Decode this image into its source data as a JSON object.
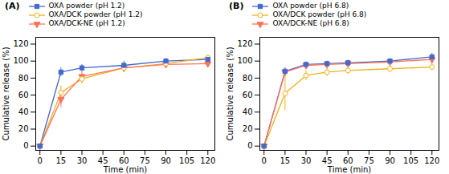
{
  "chart_data": [
    {
      "type": "line",
      "title": "(A)",
      "xlabel": "Time (min)",
      "ylabel": "Cumulative release (%)",
      "x": [
        0,
        15,
        30,
        60,
        90,
        120
      ],
      "series": [
        {
          "name": "OXA powder (pH 1.2)",
          "values": [
            0,
            87,
            92,
            95,
            100,
            102
          ],
          "errors": [
            0,
            5,
            4,
            5,
            3,
            3
          ],
          "marker": "square"
        },
        {
          "name": "OXA/DCK powder (pH 1.2)",
          "values": [
            0,
            63,
            79,
            92,
            97,
            104
          ],
          "errors": [
            0,
            8,
            6,
            5,
            4,
            3
          ],
          "marker": "open_circle"
        },
        {
          "name": "OXA/DCK-NE (pH 1.2)",
          "values": [
            0,
            55,
            82,
            92,
            96,
            97
          ],
          "errors": [
            0,
            10,
            7,
            5,
            4,
            3
          ],
          "marker": "triangle_down"
        }
      ],
      "xlim": [
        -3,
        125
      ],
      "ylim": [
        -5,
        128
      ],
      "xticks": [
        0,
        15,
        30,
        45,
        60,
        75,
        90,
        105,
        120
      ],
      "yticks": [
        0,
        20,
        40,
        60,
        80,
        100,
        120
      ],
      "grid": false,
      "legend": "top"
    },
    {
      "type": "line",
      "title": "(B)",
      "xlabel": "Time (min)",
      "ylabel": "Cumulative release (%)",
      "x": [
        0,
        15,
        30,
        45,
        60,
        90,
        120
      ],
      "series": [
        {
          "name": "OXA powder (pH 6.8)",
          "values": [
            0,
            88,
            96,
            97,
            98,
            100,
            105
          ],
          "errors": [
            0,
            4,
            3,
            3,
            3,
            3,
            4
          ],
          "marker": "square"
        },
        {
          "name": "OXA/DCK powder (pH 6.8)",
          "values": [
            0,
            62,
            83,
            87,
            89,
            91,
            93
          ],
          "errors": [
            0,
            20,
            6,
            5,
            4,
            4,
            4
          ],
          "marker": "open_circle"
        },
        {
          "name": "OXA/DCK-NE (pH 6.8)",
          "values": [
            0,
            87,
            95,
            96,
            97,
            99,
            102
          ],
          "errors": [
            0,
            5,
            4,
            3,
            3,
            3,
            5
          ],
          "marker": "triangle_down"
        }
      ],
      "xlim": [
        -3,
        125
      ],
      "ylim": [
        -5,
        128
      ],
      "xticks": [
        0,
        15,
        30,
        45,
        60,
        75,
        90,
        105,
        120
      ],
      "yticks": [
        0,
        20,
        40,
        60,
        80,
        100,
        120
      ],
      "grid": false,
      "legend": "top"
    }
  ]
}
